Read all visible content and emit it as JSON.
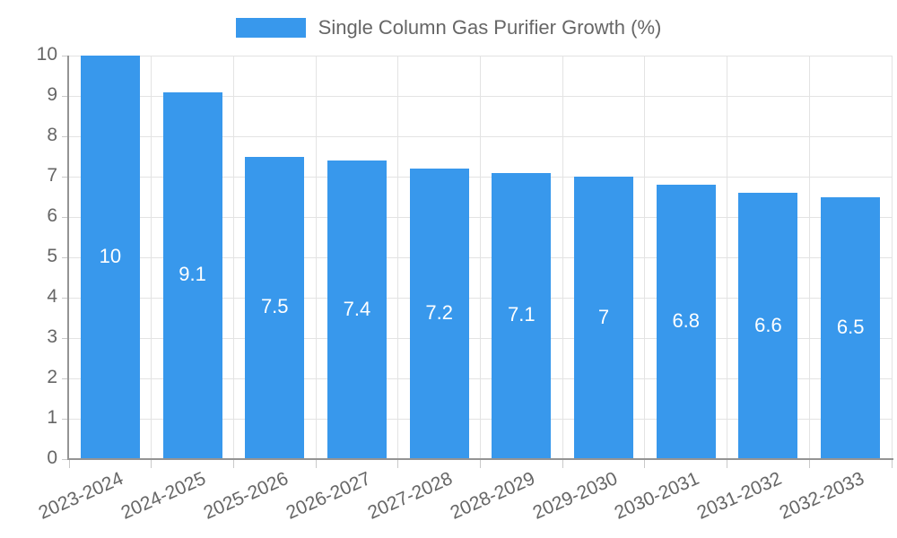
{
  "legend": {
    "label": "Single Column Gas Purifier Growth (%)"
  },
  "colors": {
    "bar": "#3898ec",
    "bar_label": "#ffffff",
    "grid": "#e3e3e3",
    "axis": "#949494",
    "tick": "#c9c9c9",
    "text": "#666666",
    "background": "#ffffff"
  },
  "chart_data": {
    "type": "bar",
    "title": "Single Column Gas Purifier Growth (%)",
    "categories": [
      "2023-2024",
      "2024-2025",
      "2025-2026",
      "2026-2027",
      "2027-2028",
      "2028-2029",
      "2029-2030",
      "2030-2031",
      "2031-2032",
      "2032-2033"
    ],
    "values": [
      10,
      9.1,
      7.5,
      7.4,
      7.2,
      7.1,
      7,
      6.8,
      6.6,
      6.5
    ],
    "bar_labels": [
      "10",
      "9.1",
      "7.5",
      "7.4",
      "7.2",
      "7.1",
      "7",
      "6.8",
      "6.6",
      "6.5"
    ],
    "xlabel": "",
    "ylabel": "",
    "ylim": [
      0,
      10
    ],
    "yticks": [
      0,
      1,
      2,
      3,
      4,
      5,
      6,
      7,
      8,
      9,
      10
    ],
    "grid": true,
    "legend_position": "top"
  }
}
